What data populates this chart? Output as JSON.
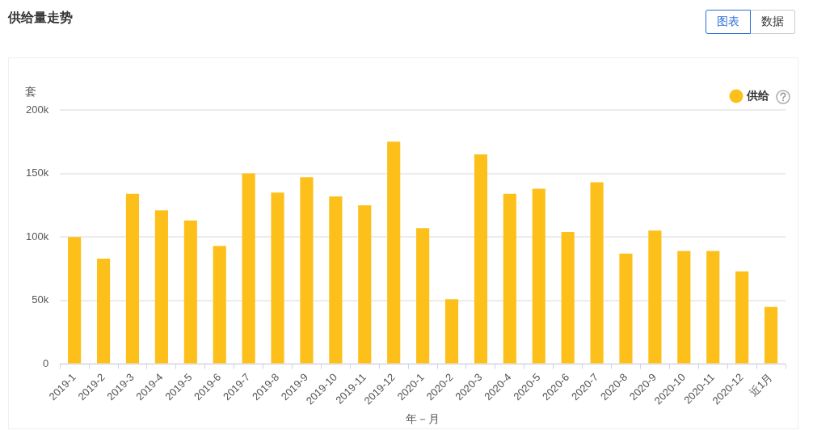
{
  "chart_data": {
    "type": "bar",
    "title": "供给量走势",
    "annotations": [
      "图表",
      "数据"
    ],
    "xlabel": "年－月",
    "ylabel": "套",
    "categories": [
      "2019-1",
      "2019-2",
      "2019-3",
      "2019-4",
      "2019-5",
      "2019-6",
      "2019-7",
      "2019-8",
      "2019-9",
      "2019-10",
      "2019-11",
      "2019-12",
      "2020-1",
      "2020-2",
      "2020-3",
      "2020-4",
      "2020-5",
      "2020-6",
      "2020-7",
      "2020-8",
      "2020-9",
      "2020-10",
      "2020-11",
      "2020-12",
      "近1月"
    ],
    "series": [
      {
        "name": "供给",
        "color": "#fdc01b",
        "values": [
          100000,
          83000,
          134000,
          121000,
          113000,
          93000,
          150000,
          135000,
          147000,
          132000,
          125000,
          175000,
          107000,
          51000,
          165000,
          134000,
          138000,
          104000,
          143000,
          87000,
          105000,
          89000,
          89000,
          73000,
          45000
        ]
      }
    ],
    "ylim": [
      0,
      200000
    ],
    "yticks": [
      {
        "value": 0,
        "label": "0"
      },
      {
        "value": 50000,
        "label": "50k"
      },
      {
        "value": 100000,
        "label": "100k"
      },
      {
        "value": 150000,
        "label": "150k"
      },
      {
        "value": 200000,
        "label": "200k"
      }
    ],
    "grid": "y",
    "legend": "top right"
  }
}
